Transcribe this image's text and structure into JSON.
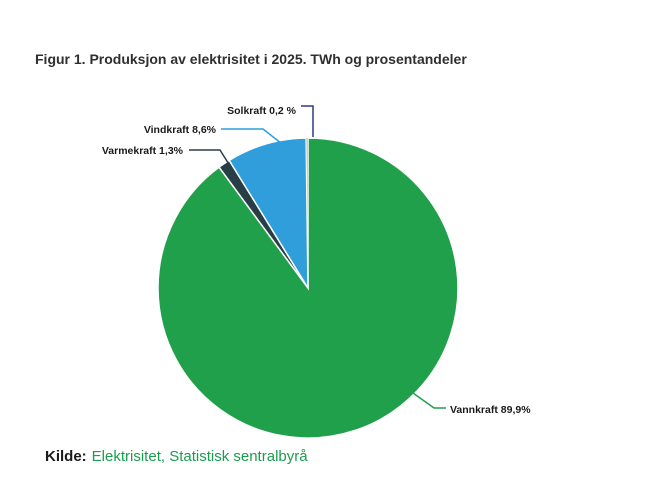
{
  "chart_data": {
    "type": "pie",
    "title": "Figur 1. Produksjon av elektrisitet i 2025. TWh og prosentandeler",
    "direction": "clockwise",
    "start_angle_deg": 0,
    "legend_position": "none",
    "slices": [
      {
        "label": "Vannkraft",
        "value_pct": 89.9,
        "display": "Vannkraft 89,9%",
        "color": "#21a04b",
        "leader_color": "#21a04b"
      },
      {
        "label": "Varmekraft",
        "value_pct": 1.3,
        "display": "Varmekraft 1,3%",
        "color": "#283e46",
        "leader_color": "#283e46"
      },
      {
        "label": "Vindkraft",
        "value_pct": 8.6,
        "display": "Vindkraft 8,6%",
        "color": "#2f9edb",
        "leader_color": "#2f9edb"
      },
      {
        "label": "Solkraft",
        "value_pct": 0.2,
        "display": "Solkraft 0,2 %",
        "color": "#b3bcc0",
        "leader_color": "#2e3a8c"
      }
    ]
  },
  "source": {
    "prefix": "Kilde:",
    "text": "Elektrisitet, Statistisk sentralbyrå",
    "color": "#1a9d4e"
  }
}
